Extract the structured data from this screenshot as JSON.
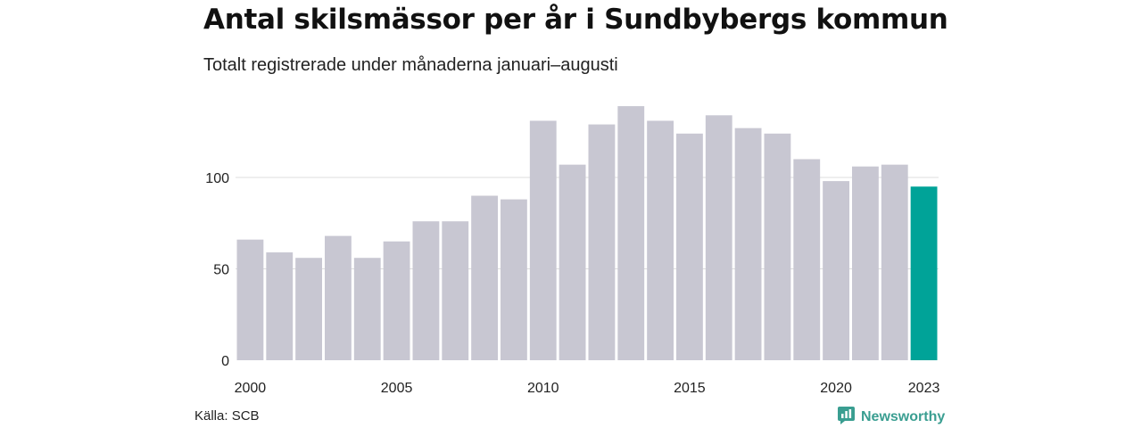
{
  "header": {
    "title": "Antal skilsmässor per år i Sundbybergs kommun",
    "subtitle": "Totalt registrerade under månaderna januari–augusti"
  },
  "footer": {
    "source": "Källa: SCB",
    "brand": "Newsworthy"
  },
  "colors": {
    "bar": "#c8c7d2",
    "highlight": "#00a398",
    "grid": "#dedede",
    "text": "#222222",
    "brand": "#3a9e91"
  },
  "icons": {
    "brand_logo": "bar-chart-icon"
  },
  "chart_data": {
    "type": "bar",
    "categories": [
      "2000",
      "2001",
      "2002",
      "2003",
      "2004",
      "2005",
      "2006",
      "2007",
      "2008",
      "2009",
      "2010",
      "2011",
      "2012",
      "2013",
      "2014",
      "2015",
      "2016",
      "2017",
      "2018",
      "2019",
      "2020",
      "2021",
      "2022",
      "2023"
    ],
    "values": [
      66,
      59,
      56,
      68,
      56,
      65,
      76,
      76,
      90,
      88,
      131,
      107,
      129,
      139,
      131,
      124,
      134,
      127,
      124,
      110,
      98,
      106,
      107,
      95
    ],
    "highlight": "2023",
    "xlabel": "",
    "ylabel": "",
    "ylim": [
      0,
      140
    ],
    "yticks": [
      0,
      50,
      100
    ],
    "xtick_labels": [
      "2000",
      "2005",
      "2010",
      "2015",
      "2020",
      "2023"
    ],
    "grid": true
  }
}
